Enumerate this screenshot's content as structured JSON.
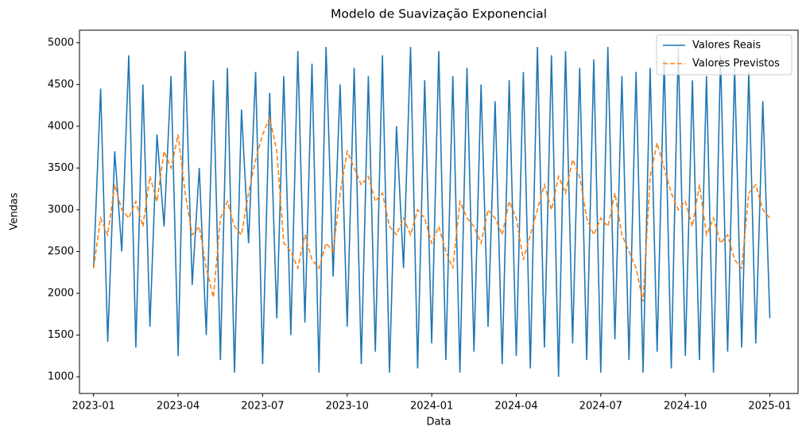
{
  "chart_data": {
    "type": "line",
    "title": "Modelo de Suavização Exponencial",
    "xlabel": "Data",
    "ylabel": "Vendas",
    "x": [
      0,
      0.25,
      0.5,
      0.75,
      1,
      1.25,
      1.5,
      1.75,
      2,
      2.25,
      2.5,
      2.75,
      3,
      3.25,
      3.5,
      3.75,
      4,
      4.25,
      4.5,
      4.75,
      5,
      5.25,
      5.5,
      5.75,
      6,
      6.25,
      6.5,
      6.75,
      7,
      7.25,
      7.5,
      7.75,
      8,
      8.25,
      8.5,
      8.75,
      9,
      9.25,
      9.5,
      9.75,
      10,
      10.25,
      10.5,
      10.75,
      11,
      11.25,
      11.5,
      11.75,
      12,
      12.25,
      12.5,
      12.75,
      13,
      13.25,
      13.5,
      13.75,
      14,
      14.25,
      14.5,
      14.75,
      15,
      15.25,
      15.5,
      15.75,
      16,
      16.25,
      16.5,
      16.75,
      17,
      17.25,
      17.5,
      17.75,
      18,
      18.25,
      18.5,
      18.75,
      19,
      19.25,
      19.5,
      19.75,
      20,
      20.25,
      20.5,
      20.75,
      21,
      21.25,
      21.5,
      21.75,
      22,
      22.25,
      22.5,
      22.75,
      23,
      23.25,
      23.5,
      23.75,
      24
    ],
    "series": [
      {
        "name": "Valores Reais",
        "color": "#1f77b4",
        "dash": false,
        "values": [
          2300,
          4450,
          1420,
          3700,
          2500,
          4850,
          1350,
          4500,
          1600,
          3900,
          2800,
          4600,
          1250,
          4900,
          2100,
          3500,
          1500,
          4550,
          1200,
          4700,
          1050,
          4200,
          2600,
          4650,
          1150,
          4400,
          1700,
          4600,
          1500,
          4900,
          1650,
          4750,
          1050,
          4950,
          2200,
          4500,
          1600,
          4700,
          1150,
          4600,
          1300,
          4850,
          1050,
          4000,
          2300,
          4950,
          1100,
          4550,
          1400,
          4900,
          1200,
          4600,
          1050,
          4700,
          1300,
          4500,
          1600,
          4300,
          1150,
          4550,
          1250,
          4650,
          1100,
          4950,
          1350,
          4850,
          1000,
          4900,
          1400,
          4700,
          1200,
          4800,
          1050,
          4950,
          1450,
          4600,
          1200,
          4650,
          1050,
          4700,
          1300,
          4800,
          1100,
          4950,
          1250,
          4550,
          1200,
          4600,
          1050,
          4850,
          1300,
          4700,
          1350,
          4650,
          1400,
          4300,
          1700
        ]
      },
      {
        "name": "Valores Previstos",
        "color": "#ff7f0e",
        "dash": true,
        "values": [
          2300,
          2900,
          2700,
          3300,
          3000,
          2900,
          3100,
          2800,
          3400,
          3100,
          3700,
          3500,
          3900,
          3200,
          2700,
          2800,
          2300,
          1950,
          2900,
          3100,
          2800,
          2700,
          3200,
          3600,
          3900,
          4100,
          3700,
          2600,
          2500,
          2300,
          2700,
          2400,
          2300,
          2600,
          2500,
          3200,
          3700,
          3500,
          3300,
          3400,
          3100,
          3200,
          2800,
          2700,
          2900,
          2700,
          3000,
          2900,
          2600,
          2800,
          2500,
          2300,
          3100,
          2900,
          2800,
          2600,
          3000,
          2900,
          2700,
          3100,
          2900,
          2400,
          2700,
          3000,
          3300,
          3000,
          3400,
          3200,
          3600,
          3400,
          2900,
          2700,
          2900,
          2800,
          3200,
          2700,
          2500,
          2300,
          1900,
          3400,
          3800,
          3500,
          3200,
          3000,
          3100,
          2800,
          3300,
          2700,
          2900,
          2600,
          2700,
          2400,
          2300,
          3200,
          3300,
          3000,
          2900
        ]
      }
    ],
    "xlim": [
      -0.5,
      25
    ],
    "xticks": [
      {
        "value": 0,
        "label": "2023-01"
      },
      {
        "value": 3,
        "label": "2023-04"
      },
      {
        "value": 6,
        "label": "2023-07"
      },
      {
        "value": 9,
        "label": "2023-10"
      },
      {
        "value": 12,
        "label": "2024-01"
      },
      {
        "value": 15,
        "label": "2024-04"
      },
      {
        "value": 18,
        "label": "2024-07"
      },
      {
        "value": 21,
        "label": "2024-10"
      },
      {
        "value": 24,
        "label": "2025-01"
      }
    ],
    "ylim": [
      800,
      5150
    ],
    "yticks": [
      1000,
      1500,
      2000,
      2500,
      3000,
      3500,
      4000,
      4500,
      5000
    ],
    "legend": "upper right"
  }
}
